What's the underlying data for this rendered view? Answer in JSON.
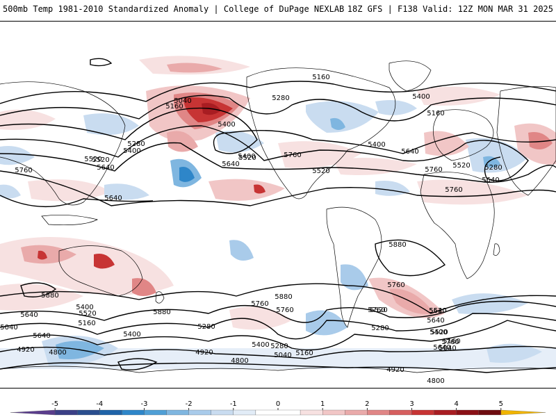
{
  "header": {
    "left_title": "500mb Temp 1981-2010 Standardized Anomaly | College of DuPage NEXLAB",
    "right_title": "18Z GFS | F138 Valid: 12Z MON MAR 31 2025"
  },
  "colors": {
    "neg5": "#5a3d8c",
    "neg4": "#1e3a78",
    "neg3": "#2e86c9",
    "neg2": "#7fb6e0",
    "neg1": "#d2e3f3",
    "zero": "#ffffff",
    "pos1": "#f5d2d2",
    "pos2": "#e79393",
    "pos3": "#cf3b3b",
    "pos4": "#8a1016",
    "pos5": "#f0b400",
    "contour": "#000000",
    "coast": "#000000"
  },
  "contours": [
    {
      "label": "5160"
    },
    {
      "label": "5280"
    },
    {
      "label": "5040"
    },
    {
      "label": "5160"
    },
    {
      "label": "5280"
    },
    {
      "label": "5400"
    },
    {
      "label": "5520"
    },
    {
      "label": "5640"
    },
    {
      "label": "5760"
    },
    {
      "label": "5400"
    },
    {
      "label": "5520"
    },
    {
      "label": "5640"
    },
    {
      "label": "5760"
    },
    {
      "label": "5520"
    },
    {
      "label": "5400"
    },
    {
      "label": "5640"
    },
    {
      "label": "5760"
    },
    {
      "label": "5520"
    },
    {
      "label": "5400"
    },
    {
      "label": "5160"
    },
    {
      "label": "5280"
    },
    {
      "label": "5640"
    },
    {
      "label": "5760"
    },
    {
      "label": "5640"
    },
    {
      "label": "5880"
    },
    {
      "label": "5760"
    },
    {
      "label": "5880"
    },
    {
      "label": "5880"
    },
    {
      "label": "5880"
    },
    {
      "label": "5760"
    },
    {
      "label": "5760"
    },
    {
      "label": "5760"
    },
    {
      "label": "5520"
    },
    {
      "label": "5640"
    },
    {
      "label": "5520"
    },
    {
      "label": "5640"
    },
    {
      "label": "5760"
    },
    {
      "label": "5640"
    },
    {
      "label": "5400"
    },
    {
      "label": "5520"
    },
    {
      "label": "5160"
    },
    {
      "label": "5040"
    },
    {
      "label": "5640"
    },
    {
      "label": "5400"
    },
    {
      "label": "5280"
    },
    {
      "label": "5280"
    },
    {
      "label": "5400"
    },
    {
      "label": "5400"
    },
    {
      "label": "5160"
    },
    {
      "label": "5040"
    },
    {
      "label": "4920"
    },
    {
      "label": "4800"
    },
    {
      "label": "4920"
    },
    {
      "label": "4800"
    },
    {
      "label": "4920"
    },
    {
      "label": "4800"
    },
    {
      "label": "5040"
    },
    {
      "label": "5160"
    },
    {
      "label": "5280"
    },
    {
      "label": "5520"
    },
    {
      "label": "5400"
    },
    {
      "label": "5520"
    },
    {
      "label": "5640"
    }
  ],
  "legend": {
    "ticks": [
      "-5",
      "-4",
      "-3",
      "-2",
      "-1",
      "0",
      "1",
      "2",
      "3",
      "4",
      "5"
    ],
    "bins": [
      {
        "from": -6,
        "to": -5,
        "color": "#5a3d8c"
      },
      {
        "from": -5,
        "to": -4.5,
        "color": "#3b3f86"
      },
      {
        "from": -4.5,
        "to": -4,
        "color": "#2a4e8e"
      },
      {
        "from": -4,
        "to": -3.5,
        "color": "#1f63a8"
      },
      {
        "from": -3.5,
        "to": -3,
        "color": "#2e86c9"
      },
      {
        "from": -3,
        "to": -2.5,
        "color": "#4f9fd6"
      },
      {
        "from": -2.5,
        "to": -2,
        "color": "#7fb6e0"
      },
      {
        "from": -2,
        "to": -1.5,
        "color": "#a9cbea"
      },
      {
        "from": -1.5,
        "to": -1,
        "color": "#c9dcf0"
      },
      {
        "from": -1,
        "to": -0.5,
        "color": "#e2ecf7"
      },
      {
        "from": -0.5,
        "to": 0.5,
        "color": "#ffffff"
      },
      {
        "from": 0.5,
        "to": 1,
        "color": "#f7e1e1"
      },
      {
        "from": 1,
        "to": 1.5,
        "color": "#f1c6c6"
      },
      {
        "from": 1.5,
        "to": 2,
        "color": "#e9aaaa"
      },
      {
        "from": 2,
        "to": 2.5,
        "color": "#e08686"
      },
      {
        "from": 2.5,
        "to": 3,
        "color": "#d65f5f"
      },
      {
        "from": 3,
        "to": 3.5,
        "color": "#c73434"
      },
      {
        "from": 3.5,
        "to": 4,
        "color": "#a81d22"
      },
      {
        "from": 4,
        "to": 4.5,
        "color": "#8a1016"
      },
      {
        "from": 4.5,
        "to": 5,
        "color": "#6e0c10"
      },
      {
        "from": 5,
        "to": 6,
        "color": "#f0b400"
      }
    ]
  }
}
